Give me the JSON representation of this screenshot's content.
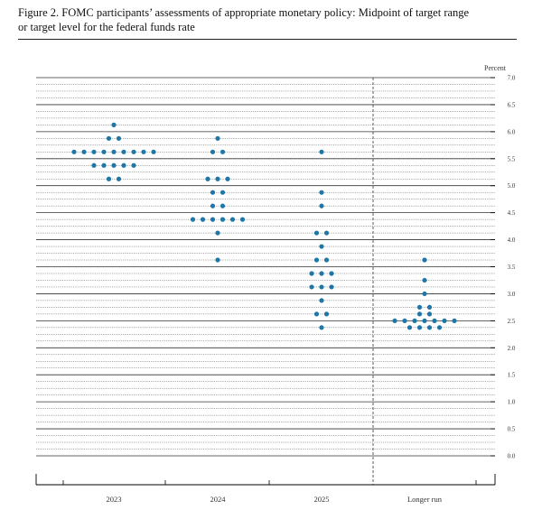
{
  "figure": {
    "title_line1": "Figure 2.  FOMC participants’ assessments of appropriate monetary policy:  Midpoint of target range",
    "title_line2": "or target level for the federal funds rate"
  },
  "chart_data": {
    "type": "scatter",
    "subtype": "dot-plot",
    "title": "Figure 2.  FOMC participants’ assessments of appropriate monetary policy:  Midpoint of target range or target level for the federal funds rate",
    "ylabel": "Percent",
    "ylim": [
      0,
      7
    ],
    "y_ticks": [
      "0.0",
      "0.5",
      "1.0",
      "1.5",
      "2.0",
      "2.5",
      "3.0",
      "3.5",
      "4.0",
      "4.5",
      "5.0",
      "5.5",
      "6.0",
      "6.5",
      "7.0"
    ],
    "gridlines": "solid at whole and half percent, dotted at eighths",
    "dot_color": "#1f77a8",
    "categories": [
      "2023",
      "2024",
      "2025",
      "Longer run"
    ],
    "groups": [
      {
        "category": "2023",
        "points": [
          {
            "y": 6.125,
            "n": 1
          },
          {
            "y": 5.875,
            "n": 2
          },
          {
            "y": 5.625,
            "n": 9
          },
          {
            "y": 5.375,
            "n": 5
          },
          {
            "y": 5.125,
            "n": 2
          }
        ]
      },
      {
        "category": "2024",
        "points": [
          {
            "y": 5.875,
            "n": 1
          },
          {
            "y": 5.625,
            "n": 2
          },
          {
            "y": 5.125,
            "n": 3
          },
          {
            "y": 4.875,
            "n": 2
          },
          {
            "y": 4.625,
            "n": 2
          },
          {
            "y": 4.375,
            "n": 6
          },
          {
            "y": 4.125,
            "n": 1
          },
          {
            "y": 3.625,
            "n": 1
          }
        ]
      },
      {
        "category": "2025",
        "points": [
          {
            "y": 5.625,
            "n": 1
          },
          {
            "y": 4.875,
            "n": 1
          },
          {
            "y": 4.625,
            "n": 1
          },
          {
            "y": 4.125,
            "n": 2
          },
          {
            "y": 3.875,
            "n": 1
          },
          {
            "y": 3.625,
            "n": 2
          },
          {
            "y": 3.375,
            "n": 3
          },
          {
            "y": 3.125,
            "n": 3
          },
          {
            "y": 2.875,
            "n": 1
          },
          {
            "y": 2.625,
            "n": 2
          },
          {
            "y": 2.375,
            "n": 1
          }
        ]
      },
      {
        "category": "Longer run",
        "points": [
          {
            "y": 3.625,
            "n": 1
          },
          {
            "y": 3.25,
            "n": 1
          },
          {
            "y": 3.0,
            "n": 1
          },
          {
            "y": 2.75,
            "n": 2
          },
          {
            "y": 2.625,
            "n": 2
          },
          {
            "y": 2.5,
            "n": 7
          },
          {
            "y": 2.375,
            "n": 4
          }
        ]
      }
    ]
  }
}
